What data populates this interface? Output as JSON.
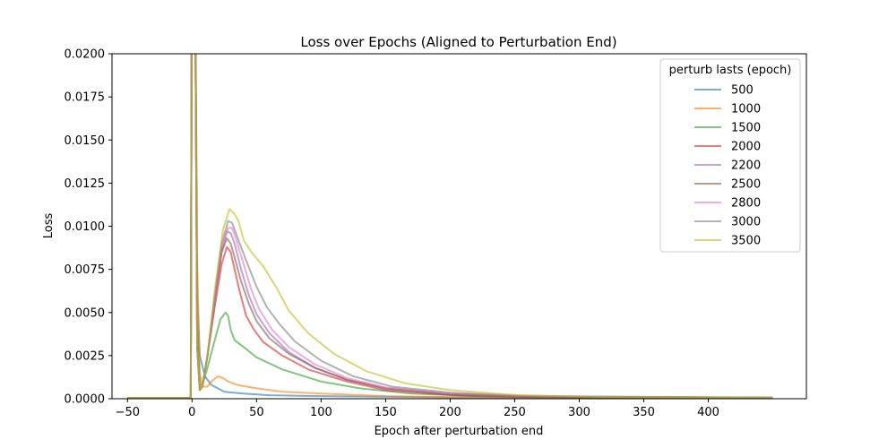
{
  "chart_data": {
    "type": "line",
    "title": "Loss over Epochs (Aligned to Perturbation End)",
    "xlabel": "Epoch after perturbation end",
    "ylabel": "Loss",
    "xlim": [
      -62,
      476
    ],
    "ylim": [
      0,
      0.02
    ],
    "xticks": [
      -50,
      0,
      50,
      100,
      150,
      200,
      250,
      300,
      350,
      400
    ],
    "yticks": [
      0.0,
      0.0025,
      0.005,
      0.0075,
      0.01,
      0.0125,
      0.015,
      0.0175,
      0.02
    ],
    "ytick_labels": [
      "0.0000",
      "0.0025",
      "0.0050",
      "0.0075",
      "0.0100",
      "0.0125",
      "0.0150",
      "0.0175",
      "0.0200"
    ],
    "grid": false,
    "legend": {
      "title": "perturb lasts (epoch)",
      "position": "top-right"
    },
    "series": [
      {
        "name": "500",
        "color": "#1f77b4",
        "points": [
          [
            -50,
            5e-05
          ],
          [
            -1,
            5e-05
          ],
          [
            0,
            0.03
          ],
          [
            2,
            0.03
          ],
          [
            4,
            0.006
          ],
          [
            6,
            0.0025
          ],
          [
            10,
            0.0013
          ],
          [
            15,
            0.0008
          ],
          [
            20,
            0.0006
          ],
          [
            25,
            0.0004
          ],
          [
            40,
            0.0003
          ],
          [
            60,
            0.0002
          ],
          [
            100,
            0.00015
          ],
          [
            200,
            8e-05
          ],
          [
            300,
            6e-05
          ],
          [
            450,
            5e-05
          ]
        ]
      },
      {
        "name": "1000",
        "color": "#ff7f0e",
        "points": [
          [
            -50,
            5e-05
          ],
          [
            -1,
            5e-05
          ],
          [
            0,
            0.03
          ],
          [
            2,
            0.03
          ],
          [
            4,
            0.008
          ],
          [
            6,
            0.0015
          ],
          [
            8,
            0.0007
          ],
          [
            12,
            0.0007
          ],
          [
            15,
            0.001
          ],
          [
            20,
            0.0013
          ],
          [
            24,
            0.0012
          ],
          [
            28,
            0.001
          ],
          [
            35,
            0.0008
          ],
          [
            50,
            0.0006
          ],
          [
            70,
            0.0004
          ],
          [
            100,
            0.0003
          ],
          [
            150,
            0.00015
          ],
          [
            200,
            0.0001
          ],
          [
            300,
            6e-05
          ],
          [
            450,
            5e-05
          ]
        ]
      },
      {
        "name": "1500",
        "color": "#2ca02c",
        "points": [
          [
            -50,
            5e-05
          ],
          [
            -1,
            5e-05
          ],
          [
            0,
            0.03
          ],
          [
            2,
            0.03
          ],
          [
            4,
            0.004
          ],
          [
            6,
            0.0008
          ],
          [
            8,
            0.0008
          ],
          [
            12,
            0.0018
          ],
          [
            18,
            0.0035
          ],
          [
            22,
            0.0046
          ],
          [
            26,
            0.005
          ],
          [
            28,
            0.0048
          ],
          [
            30,
            0.004
          ],
          [
            33,
            0.0034
          ],
          [
            40,
            0.003
          ],
          [
            50,
            0.0024
          ],
          [
            70,
            0.0017
          ],
          [
            100,
            0.001
          ],
          [
            130,
            0.0006
          ],
          [
            170,
            0.0003
          ],
          [
            220,
            0.00015
          ],
          [
            300,
            8e-05
          ],
          [
            450,
            5e-05
          ]
        ]
      },
      {
        "name": "2000",
        "color": "#d62728",
        "points": [
          [
            -50,
            5e-05
          ],
          [
            -1,
            5e-05
          ],
          [
            0,
            0.03
          ],
          [
            2,
            0.03
          ],
          [
            4,
            0.003
          ],
          [
            6,
            0.0005
          ],
          [
            8,
            0.0007
          ],
          [
            12,
            0.0025
          ],
          [
            18,
            0.0055
          ],
          [
            23,
            0.0078
          ],
          [
            27,
            0.0088
          ],
          [
            30,
            0.0085
          ],
          [
            33,
            0.0075
          ],
          [
            37,
            0.0062
          ],
          [
            42,
            0.0048
          ],
          [
            48,
            0.004
          ],
          [
            55,
            0.0033
          ],
          [
            70,
            0.0025
          ],
          [
            90,
            0.0017
          ],
          [
            120,
            0.001
          ],
          [
            150,
            0.0005
          ],
          [
            200,
            0.00022
          ],
          [
            260,
            0.0001
          ],
          [
            450,
            5e-05
          ]
        ]
      },
      {
        "name": "2200",
        "color": "#9467bd",
        "points": [
          [
            -50,
            5e-05
          ],
          [
            -1,
            5e-05
          ],
          [
            0,
            0.03
          ],
          [
            2,
            0.03
          ],
          [
            4,
            0.003
          ],
          [
            6,
            0.0005
          ],
          [
            8,
            0.0007
          ],
          [
            12,
            0.0025
          ],
          [
            18,
            0.0058
          ],
          [
            23,
            0.0085
          ],
          [
            27,
            0.0097
          ],
          [
            30,
            0.0096
          ],
          [
            33,
            0.009
          ],
          [
            38,
            0.0075
          ],
          [
            44,
            0.006
          ],
          [
            50,
            0.0049
          ],
          [
            60,
            0.0038
          ],
          [
            75,
            0.0027
          ],
          [
            95,
            0.0018
          ],
          [
            120,
            0.0011
          ],
          [
            150,
            0.0006
          ],
          [
            200,
            0.00025
          ],
          [
            260,
            0.00012
          ],
          [
            450,
            6e-05
          ]
        ]
      },
      {
        "name": "2500",
        "color": "#8c564b",
        "points": [
          [
            -50,
            5e-05
          ],
          [
            -1,
            5e-05
          ],
          [
            0,
            0.03
          ],
          [
            2,
            0.03
          ],
          [
            4,
            0.003
          ],
          [
            6,
            0.0005
          ],
          [
            8,
            0.0007
          ],
          [
            12,
            0.0025
          ],
          [
            18,
            0.006
          ],
          [
            23,
            0.0085
          ],
          [
            27,
            0.0093
          ],
          [
            30,
            0.009
          ],
          [
            33,
            0.0082
          ],
          [
            38,
            0.0068
          ],
          [
            44,
            0.0055
          ],
          [
            50,
            0.0045
          ],
          [
            60,
            0.0035
          ],
          [
            75,
            0.0026
          ],
          [
            95,
            0.0018
          ],
          [
            120,
            0.0011
          ],
          [
            150,
            0.0006
          ],
          [
            200,
            0.00025
          ],
          [
            260,
            0.00012
          ],
          [
            450,
            6e-05
          ]
        ]
      },
      {
        "name": "2800",
        "color": "#e377c2",
        "points": [
          [
            -50,
            5e-05
          ],
          [
            -1,
            5e-05
          ],
          [
            0,
            0.03
          ],
          [
            2,
            0.03
          ],
          [
            4,
            0.003
          ],
          [
            6,
            0.0005
          ],
          [
            8,
            0.0007
          ],
          [
            12,
            0.0025
          ],
          [
            18,
            0.006
          ],
          [
            23,
            0.0088
          ],
          [
            28,
            0.0099
          ],
          [
            31,
            0.0099
          ],
          [
            34,
            0.0093
          ],
          [
            40,
            0.0078
          ],
          [
            46,
            0.0063
          ],
          [
            52,
            0.0052
          ],
          [
            62,
            0.004
          ],
          [
            75,
            0.003
          ],
          [
            95,
            0.002
          ],
          [
            120,
            0.0012
          ],
          [
            150,
            0.00065
          ],
          [
            200,
            0.0003
          ],
          [
            260,
            0.00014
          ],
          [
            450,
            6e-05
          ]
        ]
      },
      {
        "name": "3000",
        "color": "#7f7f7f",
        "points": [
          [
            -50,
            5e-05
          ],
          [
            -1,
            5e-05
          ],
          [
            0,
            0.03
          ],
          [
            2,
            0.03
          ],
          [
            4,
            0.003
          ],
          [
            6,
            0.0005
          ],
          [
            8,
            0.0007
          ],
          [
            12,
            0.0025
          ],
          [
            18,
            0.0062
          ],
          [
            23,
            0.009
          ],
          [
            28,
            0.0103
          ],
          [
            31,
            0.0102
          ],
          [
            35,
            0.0094
          ],
          [
            42,
            0.008
          ],
          [
            50,
            0.0065
          ],
          [
            58,
            0.0053
          ],
          [
            68,
            0.0043
          ],
          [
            80,
            0.0033
          ],
          [
            100,
            0.0022
          ],
          [
            125,
            0.0013
          ],
          [
            155,
            0.0007
          ],
          [
            200,
            0.00035
          ],
          [
            260,
            0.00015
          ],
          [
            450,
            6e-05
          ]
        ]
      },
      {
        "name": "3500",
        "color": "#bcbd22",
        "points": [
          [
            -50,
            5e-05
          ],
          [
            -1,
            5e-05
          ],
          [
            0,
            0.03
          ],
          [
            2,
            0.03
          ],
          [
            4,
            0.003
          ],
          [
            6,
            0.0005
          ],
          [
            8,
            0.0007
          ],
          [
            12,
            0.0025
          ],
          [
            18,
            0.0065
          ],
          [
            24,
            0.0098
          ],
          [
            29,
            0.011
          ],
          [
            33,
            0.0107
          ],
          [
            36,
            0.0103
          ],
          [
            40,
            0.0092
          ],
          [
            46,
            0.0085
          ],
          [
            55,
            0.0077
          ],
          [
            65,
            0.0065
          ],
          [
            75,
            0.0051
          ],
          [
            90,
            0.0038
          ],
          [
            110,
            0.0026
          ],
          [
            135,
            0.0016
          ],
          [
            165,
            0.0009
          ],
          [
            200,
            0.0005
          ],
          [
            250,
            0.00022
          ],
          [
            320,
            0.0001
          ],
          [
            450,
            6e-05
          ]
        ]
      }
    ]
  }
}
